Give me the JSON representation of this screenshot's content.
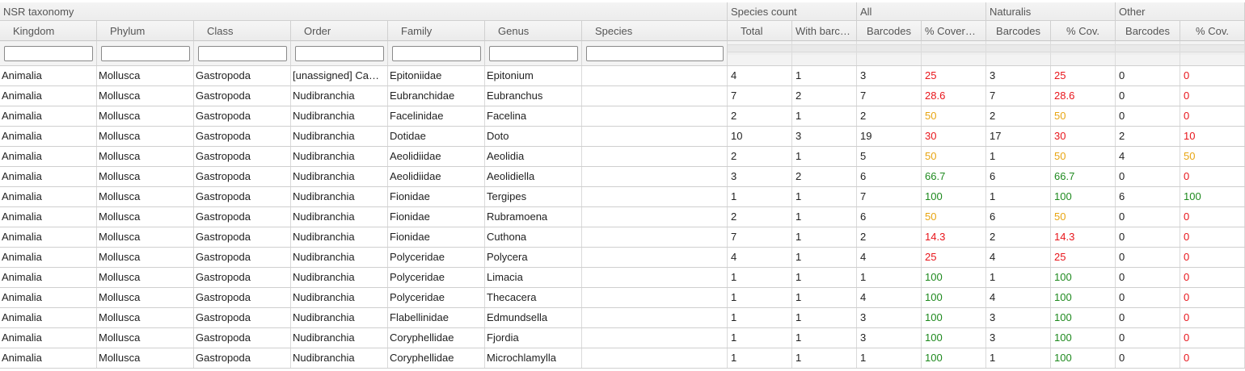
{
  "groups": {
    "nsr_taxonomy": "NSR taxonomy",
    "species_count": "Species count",
    "all": "All",
    "naturalis": "Naturalis",
    "other": "Other"
  },
  "columns": {
    "kingdom": "Kingdom",
    "phylum": "Phylum",
    "class": "Class",
    "order": "Order",
    "family": "Family",
    "genus": "Genus",
    "species": "Species",
    "total": "Total",
    "with_barcodes": "With barc…",
    "all_barcodes": "Barcodes",
    "all_coverage": "% Cover…",
    "nat_barcodes": "Barcodes",
    "nat_coverage": "% Cov.",
    "other_barcodes": "Barcodes",
    "other_coverage": "% Cov."
  },
  "filters": {
    "kingdom": "",
    "phylum": "",
    "class": "",
    "order": "",
    "family": "",
    "genus": "",
    "species": ""
  },
  "colors": {
    "low": "#e8151b",
    "mid": "#e8a512",
    "high": "#1f8a1f"
  },
  "rows": [
    {
      "kingdom": "Animalia",
      "phylum": "Mollusca",
      "class": "Gastropoda",
      "order": "[unassigned] Ca…",
      "family": "Epitoniidae",
      "genus": "Epitonium",
      "species": "",
      "total": "4",
      "with": "1",
      "all_bc": "3",
      "all_cov": "25",
      "all_lvl": "red",
      "nat_bc": "3",
      "nat_cov": "25",
      "nat_lvl": "red",
      "oth_bc": "0",
      "oth_cov": "0",
      "oth_lvl": "red"
    },
    {
      "kingdom": "Animalia",
      "phylum": "Mollusca",
      "class": "Gastropoda",
      "order": "Nudibranchia",
      "family": "Eubranchidae",
      "genus": "Eubranchus",
      "species": "",
      "total": "7",
      "with": "2",
      "all_bc": "7",
      "all_cov": "28.6",
      "all_lvl": "red",
      "nat_bc": "7",
      "nat_cov": "28.6",
      "nat_lvl": "red",
      "oth_bc": "0",
      "oth_cov": "0",
      "oth_lvl": "red"
    },
    {
      "kingdom": "Animalia",
      "phylum": "Mollusca",
      "class": "Gastropoda",
      "order": "Nudibranchia",
      "family": "Facelinidae",
      "genus": "Facelina",
      "species": "",
      "total": "2",
      "with": "1",
      "all_bc": "2",
      "all_cov": "50",
      "all_lvl": "orange",
      "nat_bc": "2",
      "nat_cov": "50",
      "nat_lvl": "orange",
      "oth_bc": "0",
      "oth_cov": "0",
      "oth_lvl": "red"
    },
    {
      "kingdom": "Animalia",
      "phylum": "Mollusca",
      "class": "Gastropoda",
      "order": "Nudibranchia",
      "family": "Dotidae",
      "genus": "Doto",
      "species": "",
      "total": "10",
      "with": "3",
      "all_bc": "19",
      "all_cov": "30",
      "all_lvl": "red",
      "nat_bc": "17",
      "nat_cov": "30",
      "nat_lvl": "red",
      "oth_bc": "2",
      "oth_cov": "10",
      "oth_lvl": "red"
    },
    {
      "kingdom": "Animalia",
      "phylum": "Mollusca",
      "class": "Gastropoda",
      "order": "Nudibranchia",
      "family": "Aeolidiidae",
      "genus": "Aeolidia",
      "species": "",
      "total": "2",
      "with": "1",
      "all_bc": "5",
      "all_cov": "50",
      "all_lvl": "orange",
      "nat_bc": "1",
      "nat_cov": "50",
      "nat_lvl": "orange",
      "oth_bc": "4",
      "oth_cov": "50",
      "oth_lvl": "orange"
    },
    {
      "kingdom": "Animalia",
      "phylum": "Mollusca",
      "class": "Gastropoda",
      "order": "Nudibranchia",
      "family": "Aeolidiidae",
      "genus": "Aeolidiella",
      "species": "",
      "total": "3",
      "with": "2",
      "all_bc": "6",
      "all_cov": "66.7",
      "all_lvl": "green",
      "nat_bc": "6",
      "nat_cov": "66.7",
      "nat_lvl": "green",
      "oth_bc": "0",
      "oth_cov": "0",
      "oth_lvl": "red"
    },
    {
      "kingdom": "Animalia",
      "phylum": "Mollusca",
      "class": "Gastropoda",
      "order": "Nudibranchia",
      "family": "Fionidae",
      "genus": "Tergipes",
      "species": "",
      "total": "1",
      "with": "1",
      "all_bc": "7",
      "all_cov": "100",
      "all_lvl": "green",
      "nat_bc": "1",
      "nat_cov": "100",
      "nat_lvl": "green",
      "oth_bc": "6",
      "oth_cov": "100",
      "oth_lvl": "green"
    },
    {
      "kingdom": "Animalia",
      "phylum": "Mollusca",
      "class": "Gastropoda",
      "order": "Nudibranchia",
      "family": "Fionidae",
      "genus": "Rubramoena",
      "species": "",
      "total": "2",
      "with": "1",
      "all_bc": "6",
      "all_cov": "50",
      "all_lvl": "orange",
      "nat_bc": "6",
      "nat_cov": "50",
      "nat_lvl": "orange",
      "oth_bc": "0",
      "oth_cov": "0",
      "oth_lvl": "red"
    },
    {
      "kingdom": "Animalia",
      "phylum": "Mollusca",
      "class": "Gastropoda",
      "order": "Nudibranchia",
      "family": "Fionidae",
      "genus": "Cuthona",
      "species": "",
      "total": "7",
      "with": "1",
      "all_bc": "2",
      "all_cov": "14.3",
      "all_lvl": "red",
      "nat_bc": "2",
      "nat_cov": "14.3",
      "nat_lvl": "red",
      "oth_bc": "0",
      "oth_cov": "0",
      "oth_lvl": "red"
    },
    {
      "kingdom": "Animalia",
      "phylum": "Mollusca",
      "class": "Gastropoda",
      "order": "Nudibranchia",
      "family": "Polyceridae",
      "genus": "Polycera",
      "species": "",
      "total": "4",
      "with": "1",
      "all_bc": "4",
      "all_cov": "25",
      "all_lvl": "red",
      "nat_bc": "4",
      "nat_cov": "25",
      "nat_lvl": "red",
      "oth_bc": "0",
      "oth_cov": "0",
      "oth_lvl": "red"
    },
    {
      "kingdom": "Animalia",
      "phylum": "Mollusca",
      "class": "Gastropoda",
      "order": "Nudibranchia",
      "family": "Polyceridae",
      "genus": "Limacia",
      "species": "",
      "total": "1",
      "with": "1",
      "all_bc": "1",
      "all_cov": "100",
      "all_lvl": "green",
      "nat_bc": "1",
      "nat_cov": "100",
      "nat_lvl": "green",
      "oth_bc": "0",
      "oth_cov": "0",
      "oth_lvl": "red"
    },
    {
      "kingdom": "Animalia",
      "phylum": "Mollusca",
      "class": "Gastropoda",
      "order": "Nudibranchia",
      "family": "Polyceridae",
      "genus": "Thecacera",
      "species": "",
      "total": "1",
      "with": "1",
      "all_bc": "4",
      "all_cov": "100",
      "all_lvl": "green",
      "nat_bc": "4",
      "nat_cov": "100",
      "nat_lvl": "green",
      "oth_bc": "0",
      "oth_cov": "0",
      "oth_lvl": "red"
    },
    {
      "kingdom": "Animalia",
      "phylum": "Mollusca",
      "class": "Gastropoda",
      "order": "Nudibranchia",
      "family": "Flabellinidae",
      "genus": "Edmundsella",
      "species": "",
      "total": "1",
      "with": "1",
      "all_bc": "3",
      "all_cov": "100",
      "all_lvl": "green",
      "nat_bc": "3",
      "nat_cov": "100",
      "nat_lvl": "green",
      "oth_bc": "0",
      "oth_cov": "0",
      "oth_lvl": "red"
    },
    {
      "kingdom": "Animalia",
      "phylum": "Mollusca",
      "class": "Gastropoda",
      "order": "Nudibranchia",
      "family": "Coryphellidae",
      "genus": "Fjordia",
      "species": "",
      "total": "1",
      "with": "1",
      "all_bc": "3",
      "all_cov": "100",
      "all_lvl": "green",
      "nat_bc": "3",
      "nat_cov": "100",
      "nat_lvl": "green",
      "oth_bc": "0",
      "oth_cov": "0",
      "oth_lvl": "red"
    },
    {
      "kingdom": "Animalia",
      "phylum": "Mollusca",
      "class": "Gastropoda",
      "order": "Nudibranchia",
      "family": "Coryphellidae",
      "genus": "Microchlamylla",
      "species": "",
      "total": "1",
      "with": "1",
      "all_bc": "1",
      "all_cov": "100",
      "all_lvl": "green",
      "nat_bc": "1",
      "nat_cov": "100",
      "nat_lvl": "green",
      "oth_bc": "0",
      "oth_cov": "0",
      "oth_lvl": "red"
    }
  ]
}
